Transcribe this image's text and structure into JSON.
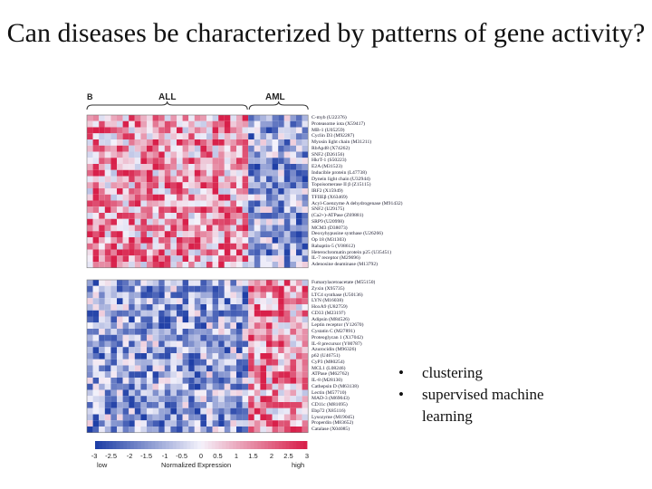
{
  "slide": {
    "title": "Can diseases be characterized by patterns of gene activity?"
  },
  "figure": {
    "panel_label": "B",
    "group_labels": [
      "ALL",
      "AML"
    ],
    "scale": {
      "ticks": [
        "-3",
        "-2.5",
        "-2",
        "-1.5",
        "-1",
        "-0.5",
        "0",
        "0.5",
        "1",
        "1.5",
        "2",
        "2.5",
        "3"
      ],
      "low_label": "low",
      "title": "Normalized Expression",
      "high_label": "high"
    },
    "genes_top": [
      "C-myb (U22376)",
      "Proteasome iota (X59417)",
      "MB-1 (U05259)",
      "Cyclin D3 (M92287)",
      "Myosin light chain (M31211)",
      "RbAp48 (X74262)",
      "SNF2 (D26156)",
      "HkrT-1 (S50223)",
      "E2A (M31523)",
      "Inducible protein (L47738)",
      "Dynein light chain (U32944)",
      "Topoisomerase II β (Z15115)",
      "IRF2 (X15949)",
      "TFIIEβ (X63469)",
      "Acyl-Coenzyme A dehydrogenase (M91432)",
      "SNF2 (U29175)",
      "(Ca2+)-ATPase (Z69881)",
      "SRP9 (U20998)",
      "MCM3 (D38073)",
      "Deoxyhypusine synthase (U26266)",
      "Op 18 (M31303)",
      "Rabaptin-5 (Y08612)",
      "Heterochromatin protein p25 (U35451)",
      "IL-7 receptor (M29696)",
      "Adenosine deaminase (M13792)"
    ],
    "genes_bottom": [
      "Fumarylacetoacetate (M55150)",
      "Zyxin (X95735)",
      "LTC4 synthase (U50136)",
      "LYN (M16038)",
      "HoxA9 (U82759)",
      "CD33 (M23197)",
      "Adipsin (M84526)",
      "Leptin receptor (Y12670)",
      "Cystatin C (M27891)",
      "Proteoglycan 1 (X17042)",
      "IL-8 precursor (Y00787)",
      "Azurocidin (M96326)",
      "p62 (U46751)",
      "CyP3 (M80254)",
      "MCL1 (L08246)",
      "ATPase (M62762)",
      "IL-8 (M28130)",
      "Cathepsin D (M63138)",
      "Lectin (M57710)",
      "MAD-3 (M69043)",
      "CD11c (M81695)",
      "Ebp72 (X85116)",
      "Lysozyme (M19045)",
      "Properdin (M83652)",
      "Catalase (X04085)"
    ],
    "colors": {
      "high": "#d8204a",
      "mid": "#f4f2fb",
      "low": "#1e3ea6"
    }
  },
  "bullets": [
    "clustering",
    "supervised machine learning"
  ]
}
